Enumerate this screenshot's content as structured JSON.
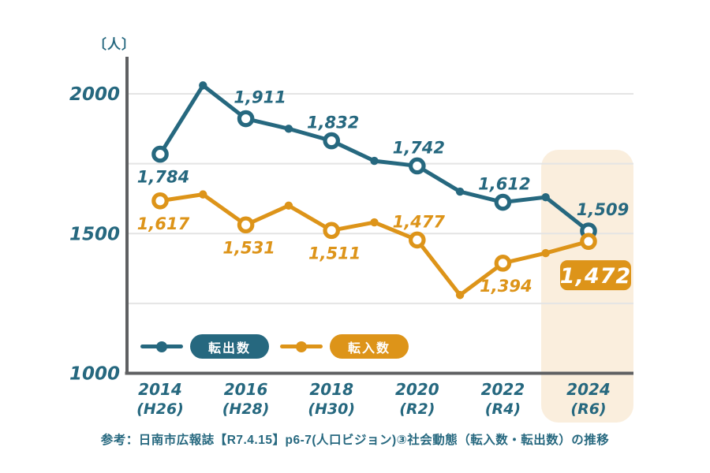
{
  "colors": {
    "moveout_teal": "#26687f",
    "movein_orange": "#dd9419",
    "grid": "#e4e4e4",
    "axis": "#5f6062",
    "highlight_band": "#faeedd",
    "background": "#ffffff",
    "badge_text": "#ffffff"
  },
  "y_axis": {
    "unit_label": "〔人〕",
    "tick_labels": [
      "2000",
      "1500",
      "1000"
    ]
  },
  "legend": {
    "items": [
      {
        "id": "moveout",
        "label": "転出数"
      },
      {
        "id": "movein",
        "label": "転入数"
      }
    ]
  },
  "footer": {
    "text": "参考：日南市広報誌【R7.4.15】p6-7(人口ビジョン)③社会動態（転入数・転出数）の推移"
  },
  "chart_data": {
    "type": "line",
    "title": "",
    "xlabel": "",
    "ylabel": "人",
    "x_years": [
      2014,
      2015,
      2016,
      2017,
      2018,
      2019,
      2020,
      2021,
      2022,
      2023,
      2024
    ],
    "x_tick_labels": [
      {
        "year": "2014",
        "era": "(H26)"
      },
      {
        "year": "2016",
        "era": "(H28)"
      },
      {
        "year": "2018",
        "era": "(H30)"
      },
      {
        "year": "2020",
        "era": "(R2)"
      },
      {
        "year": "2022",
        "era": "(R4)"
      },
      {
        "year": "2024",
        "era": "(R6)"
      }
    ],
    "ylim": [
      1000,
      2100
    ],
    "ytick_values": [
      2000,
      1500,
      1000
    ],
    "gridline_values": [
      2000,
      1750,
      1500,
      1250
    ],
    "grid": true,
    "legend_position": "bottom-inside",
    "highlight": {
      "year_label": "2024 (R6)",
      "note": "latest year column highlighted"
    },
    "estimation_note": "odd-year values are unlabeled in the source; estimated from point positions",
    "series": [
      {
        "id": "moveout",
        "name": "転出数",
        "color": "#26687f",
        "values": [
          1784,
          2030,
          1911,
          1875,
          1832,
          1760,
          1742,
          1650,
          1612,
          1630,
          1509
        ],
        "estimated_years": [
          2015,
          2017,
          2019,
          2021,
          2023
        ],
        "point_labels": [
          {
            "text": "1,784",
            "pos": "below"
          },
          null,
          {
            "text": "1,911",
            "pos": "above-right"
          },
          null,
          {
            "text": "1,832",
            "pos": "above"
          },
          null,
          {
            "text": "1,742",
            "pos": "above"
          },
          null,
          {
            "text": "1,612",
            "pos": "above"
          },
          null,
          {
            "text": "1,509",
            "pos": "above-right"
          }
        ]
      },
      {
        "id": "movein",
        "name": "転入数",
        "color": "#dd9419",
        "values": [
          1617,
          1640,
          1531,
          1600,
          1511,
          1540,
          1477,
          1280,
          1394,
          1430,
          1472
        ],
        "estimated_years": [
          2015,
          2017,
          2019,
          2021,
          2023
        ],
        "point_labels": [
          {
            "text": "1,617",
            "pos": "below"
          },
          null,
          {
            "text": "1,531",
            "pos": "below"
          },
          null,
          {
            "text": "1,511",
            "pos": "below"
          },
          null,
          {
            "text": "1,477",
            "pos": "above"
          },
          null,
          {
            "text": "1,394",
            "pos": "below"
          },
          null,
          {
            "text": "1,472",
            "pos": "badge"
          }
        ]
      }
    ]
  }
}
